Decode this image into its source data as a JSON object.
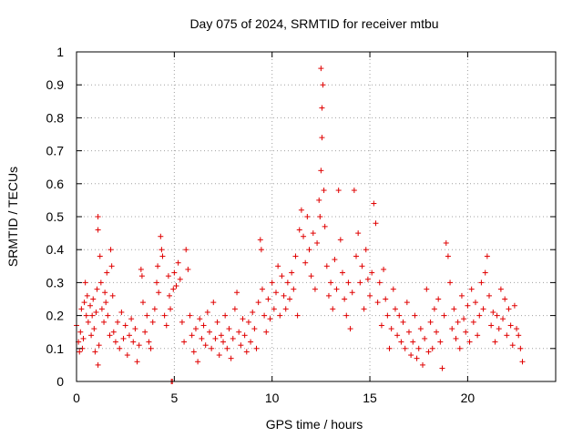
{
  "chart_data": {
    "type": "scatter",
    "title": "Day 075 of 2024, SRMTID for receiver mtbu",
    "xlabel": "GPS time / hours",
    "ylabel": "SRMTID / TECUs",
    "xlim": [
      0,
      24.5
    ],
    "ylim": [
      0,
      1
    ],
    "xticks": [
      0,
      5,
      10,
      15,
      20
    ],
    "xtick_labels": [
      "0",
      "5",
      "10",
      "15",
      "20"
    ],
    "yticks": [
      0,
      0.1,
      0.2,
      0.3,
      0.4,
      0.5,
      0.6,
      0.7,
      0.8,
      0.9,
      1
    ],
    "ytick_labels": [
      "0",
      "0.1",
      "0.2",
      "0.3",
      "0.4",
      "0.5",
      "0.6",
      "0.7",
      "0.8",
      "0.9",
      "1"
    ],
    "grid": true,
    "marker": "+",
    "color": "#e00000",
    "series": [
      {
        "name": "SRMTID",
        "points": [
          [
            0.0,
            0.17
          ],
          [
            0.1,
            0.12
          ],
          [
            0.15,
            0.09
          ],
          [
            0.2,
            0.15
          ],
          [
            0.25,
            0.22
          ],
          [
            0.3,
            0.1
          ],
          [
            0.35,
            0.13
          ],
          [
            0.4,
            0.24
          ],
          [
            0.45,
            0.3
          ],
          [
            0.5,
            0.2
          ],
          [
            0.55,
            0.26
          ],
          [
            0.6,
            0.18
          ],
          [
            0.7,
            0.23
          ],
          [
            0.75,
            0.14
          ],
          [
            0.8,
            0.2
          ],
          [
            0.85,
            0.25
          ],
          [
            0.9,
            0.16
          ],
          [
            0.95,
            0.09
          ],
          [
            1.0,
            0.21
          ],
          [
            1.05,
            0.28
          ],
          [
            1.1,
            0.05
          ],
          [
            1.15,
            0.11
          ],
          [
            1.1,
            0.5
          ],
          [
            1.1,
            0.46
          ],
          [
            1.2,
            0.38
          ],
          [
            1.25,
            0.3
          ],
          [
            1.3,
            0.22
          ],
          [
            1.4,
            0.18
          ],
          [
            1.45,
            0.27
          ],
          [
            1.5,
            0.24
          ],
          [
            1.55,
            0.33
          ],
          [
            1.6,
            0.2
          ],
          [
            1.7,
            0.14
          ],
          [
            1.75,
            0.4
          ],
          [
            1.8,
            0.35
          ],
          [
            1.85,
            0.26
          ],
          [
            1.9,
            0.15
          ],
          [
            2.0,
            0.12
          ],
          [
            2.1,
            0.18
          ],
          [
            2.2,
            0.1
          ],
          [
            2.3,
            0.21
          ],
          [
            2.4,
            0.13
          ],
          [
            2.5,
            0.17
          ],
          [
            2.6,
            0.08
          ],
          [
            2.7,
            0.14
          ],
          [
            2.8,
            0.19
          ],
          [
            2.9,
            0.12
          ],
          [
            3.0,
            0.16
          ],
          [
            3.1,
            0.06
          ],
          [
            3.2,
            0.11
          ],
          [
            3.3,
            0.34
          ],
          [
            3.35,
            0.32
          ],
          [
            3.4,
            0.24
          ],
          [
            3.5,
            0.15
          ],
          [
            3.6,
            0.2
          ],
          [
            3.7,
            0.12
          ],
          [
            3.8,
            0.1
          ],
          [
            3.9,
            0.18
          ],
          [
            4.0,
            0.22
          ],
          [
            4.1,
            0.3
          ],
          [
            4.15,
            0.35
          ],
          [
            4.2,
            0.27
          ],
          [
            4.3,
            0.44
          ],
          [
            4.35,
            0.4
          ],
          [
            4.4,
            0.38
          ],
          [
            4.5,
            0.2
          ],
          [
            4.6,
            0.17
          ],
          [
            4.7,
            0.32
          ],
          [
            4.75,
            0.26
          ],
          [
            4.8,
            0.22
          ],
          [
            4.85,
            0.0
          ],
          [
            4.9,
            0.0
          ],
          [
            4.95,
            0.28
          ],
          [
            5.0,
            0.33
          ],
          [
            5.1,
            0.29
          ],
          [
            5.2,
            0.36
          ],
          [
            5.3,
            0.31
          ],
          [
            5.4,
            0.18
          ],
          [
            5.5,
            0.12
          ],
          [
            5.6,
            0.4
          ],
          [
            5.7,
            0.34
          ],
          [
            5.8,
            0.2
          ],
          [
            5.9,
            0.14
          ],
          [
            6.0,
            0.09
          ],
          [
            6.1,
            0.16
          ],
          [
            6.2,
            0.06
          ],
          [
            6.3,
            0.19
          ],
          [
            6.4,
            0.13
          ],
          [
            6.5,
            0.17
          ],
          [
            6.6,
            0.11
          ],
          [
            6.7,
            0.21
          ],
          [
            6.8,
            0.15
          ],
          [
            6.9,
            0.1
          ],
          [
            7.0,
            0.24
          ],
          [
            7.1,
            0.13
          ],
          [
            7.2,
            0.18
          ],
          [
            7.3,
            0.08
          ],
          [
            7.4,
            0.14
          ],
          [
            7.5,
            0.12
          ],
          [
            7.6,
            0.2
          ],
          [
            7.7,
            0.1
          ],
          [
            7.8,
            0.16
          ],
          [
            7.9,
            0.07
          ],
          [
            8.0,
            0.13
          ],
          [
            8.1,
            0.22
          ],
          [
            8.2,
            0.27
          ],
          [
            8.3,
            0.15
          ],
          [
            8.4,
            0.11
          ],
          [
            8.5,
            0.19
          ],
          [
            8.6,
            0.14
          ],
          [
            8.7,
            0.09
          ],
          [
            8.8,
            0.18
          ],
          [
            8.9,
            0.12
          ],
          [
            9.0,
            0.21
          ],
          [
            9.1,
            0.16
          ],
          [
            9.2,
            0.1
          ],
          [
            9.3,
            0.24
          ],
          [
            9.4,
            0.43
          ],
          [
            9.45,
            0.4
          ],
          [
            9.5,
            0.28
          ],
          [
            9.6,
            0.2
          ],
          [
            9.7,
            0.15
          ],
          [
            9.8,
            0.25
          ],
          [
            9.9,
            0.19
          ],
          [
            10.0,
            0.3
          ],
          [
            10.1,
            0.22
          ],
          [
            10.2,
            0.27
          ],
          [
            10.3,
            0.35
          ],
          [
            10.4,
            0.2
          ],
          [
            10.5,
            0.32
          ],
          [
            10.6,
            0.26
          ],
          [
            10.7,
            0.22
          ],
          [
            10.8,
            0.3
          ],
          [
            10.9,
            0.25
          ],
          [
            11.0,
            0.33
          ],
          [
            11.1,
            0.28
          ],
          [
            11.2,
            0.38
          ],
          [
            11.3,
            0.2
          ],
          [
            11.4,
            0.46
          ],
          [
            11.5,
            0.52
          ],
          [
            11.6,
            0.44
          ],
          [
            11.7,
            0.36
          ],
          [
            11.8,
            0.5
          ],
          [
            11.9,
            0.4
          ],
          [
            12.0,
            0.32
          ],
          [
            12.1,
            0.45
          ],
          [
            12.2,
            0.28
          ],
          [
            12.3,
            0.42
          ],
          [
            12.4,
            0.55
          ],
          [
            12.45,
            0.5
          ],
          [
            12.5,
            0.64
          ],
          [
            12.55,
            0.83
          ],
          [
            12.55,
            0.74
          ],
          [
            12.5,
            0.95
          ],
          [
            12.6,
            0.9
          ],
          [
            12.65,
            0.58
          ],
          [
            12.7,
            0.47
          ],
          [
            12.8,
            0.35
          ],
          [
            12.9,
            0.26
          ],
          [
            13.0,
            0.3
          ],
          [
            13.1,
            0.22
          ],
          [
            13.2,
            0.37
          ],
          [
            13.3,
            0.28
          ],
          [
            13.4,
            0.58
          ],
          [
            13.5,
            0.43
          ],
          [
            13.6,
            0.33
          ],
          [
            13.7,
            0.25
          ],
          [
            13.8,
            0.2
          ],
          [
            13.9,
            0.3
          ],
          [
            14.0,
            0.16
          ],
          [
            14.1,
            0.27
          ],
          [
            14.2,
            0.58
          ],
          [
            14.3,
            0.38
          ],
          [
            14.4,
            0.45
          ],
          [
            14.5,
            0.3
          ],
          [
            14.6,
            0.35
          ],
          [
            14.7,
            0.22
          ],
          [
            14.8,
            0.4
          ],
          [
            14.9,
            0.31
          ],
          [
            15.0,
            0.26
          ],
          [
            15.1,
            0.33
          ],
          [
            15.2,
            0.54
          ],
          [
            15.3,
            0.48
          ],
          [
            15.4,
            0.24
          ],
          [
            15.5,
            0.3
          ],
          [
            15.6,
            0.17
          ],
          [
            15.7,
            0.34
          ],
          [
            15.8,
            0.25
          ],
          [
            15.9,
            0.2
          ],
          [
            16.0,
            0.1
          ],
          [
            16.1,
            0.16
          ],
          [
            16.2,
            0.28
          ],
          [
            16.3,
            0.22
          ],
          [
            16.4,
            0.14
          ],
          [
            16.5,
            0.2
          ],
          [
            16.6,
            0.12
          ],
          [
            16.7,
            0.18
          ],
          [
            16.8,
            0.1
          ],
          [
            16.9,
            0.24
          ],
          [
            17.0,
            0.15
          ],
          [
            17.1,
            0.08
          ],
          [
            17.2,
            0.12
          ],
          [
            17.3,
            0.2
          ],
          [
            17.4,
            0.07
          ],
          [
            17.5,
            0.1
          ],
          [
            17.6,
            0.16
          ],
          [
            17.7,
            0.05
          ],
          [
            17.8,
            0.13
          ],
          [
            17.9,
            0.28
          ],
          [
            18.0,
            0.09
          ],
          [
            18.1,
            0.18
          ],
          [
            18.2,
            0.1
          ],
          [
            18.3,
            0.22
          ],
          [
            18.4,
            0.15
          ],
          [
            18.5,
            0.25
          ],
          [
            18.6,
            0.12
          ],
          [
            18.7,
            0.04
          ],
          [
            18.8,
            0.2
          ],
          [
            18.9,
            0.42
          ],
          [
            19.0,
            0.38
          ],
          [
            19.1,
            0.3
          ],
          [
            19.2,
            0.16
          ],
          [
            19.3,
            0.22
          ],
          [
            19.4,
            0.13
          ],
          [
            19.5,
            0.18
          ],
          [
            19.6,
            0.1
          ],
          [
            19.7,
            0.26
          ],
          [
            19.8,
            0.19
          ],
          [
            19.9,
            0.15
          ],
          [
            20.0,
            0.23
          ],
          [
            20.1,
            0.12
          ],
          [
            20.2,
            0.28
          ],
          [
            20.3,
            0.18
          ],
          [
            20.4,
            0.24
          ],
          [
            20.5,
            0.14
          ],
          [
            20.6,
            0.2
          ],
          [
            20.7,
            0.3
          ],
          [
            20.8,
            0.22
          ],
          [
            20.9,
            0.33
          ],
          [
            21.0,
            0.38
          ],
          [
            21.1,
            0.26
          ],
          [
            21.2,
            0.17
          ],
          [
            21.3,
            0.21
          ],
          [
            21.4,
            0.12
          ],
          [
            21.5,
            0.2
          ],
          [
            21.6,
            0.16
          ],
          [
            21.7,
            0.28
          ],
          [
            21.8,
            0.19
          ],
          [
            21.9,
            0.25
          ],
          [
            22.0,
            0.14
          ],
          [
            22.1,
            0.22
          ],
          [
            22.2,
            0.17
          ],
          [
            22.3,
            0.11
          ],
          [
            22.4,
            0.23
          ],
          [
            22.5,
            0.16
          ],
          [
            22.6,
            0.14
          ],
          [
            22.7,
            0.1
          ],
          [
            22.8,
            0.06
          ]
        ]
      }
    ]
  }
}
